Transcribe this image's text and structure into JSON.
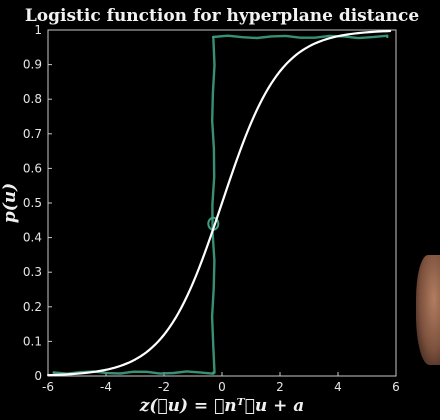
{
  "chart_data": {
    "type": "line",
    "title": "Logistic function for hyperplane distance",
    "xlabel": "z(⃗u) = ⃗nᵀ⃗u + a",
    "ylabel": "p(u)",
    "xlim": [
      -6,
      6
    ],
    "ylim": [
      0,
      1
    ],
    "xticks": [
      "-6",
      "-4",
      "-2",
      "0",
      "2",
      "4",
      "6"
    ],
    "yticks": [
      "0",
      "0.1",
      "0.2",
      "0.3",
      "0.4",
      "0.5",
      "0.6",
      "0.7",
      "0.8",
      "0.9",
      "1"
    ],
    "grid": false,
    "series": [
      {
        "color": "#ffffff",
        "function": "logistic",
        "x": [
          -6,
          -5,
          -4,
          -3,
          -2,
          -1,
          0,
          1,
          2,
          3,
          4,
          5,
          5.8
        ],
        "values": [
          0.003,
          0.007,
          0.018,
          0.047,
          0.119,
          0.269,
          0.5,
          0.731,
          0.881,
          0.953,
          0.982,
          0.993,
          0.997
        ]
      },
      {
        "color": "#3f9e83",
        "style": "hand-drawn step",
        "x": [
          -5.8,
          -0.3,
          -0.3,
          5.7
        ],
        "values": [
          0.01,
          0.01,
          0.98,
          0.98
        ]
      }
    ],
    "annotations": [
      {
        "type": "circle",
        "color": "#3f9e83",
        "x": -0.3,
        "y": 0.44
      }
    ]
  }
}
